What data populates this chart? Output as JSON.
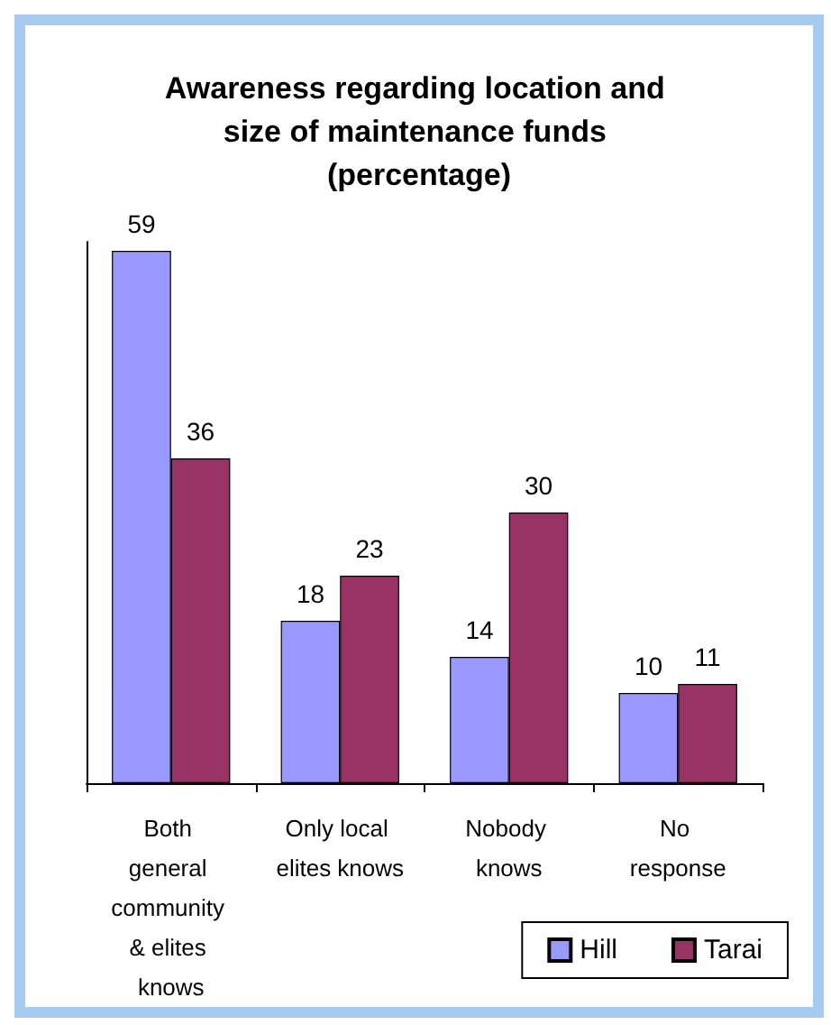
{
  "chart_data": {
    "type": "bar",
    "title": "Awareness regarding location and size of maintenance funds (percentage)",
    "categories": [
      "Both general community & elites knows",
      "Only local elites knows",
      "Nobody knows",
      "No response"
    ],
    "series": [
      {
        "name": "Hill",
        "color": "#9999ff",
        "values": [
          59,
          18,
          14,
          10
        ]
      },
      {
        "name": "Tarai",
        "color": "#993366",
        "values": [
          36,
          23,
          30,
          11
        ]
      }
    ],
    "data_labels": true,
    "grid": false,
    "legend": "bottom right"
  }
}
